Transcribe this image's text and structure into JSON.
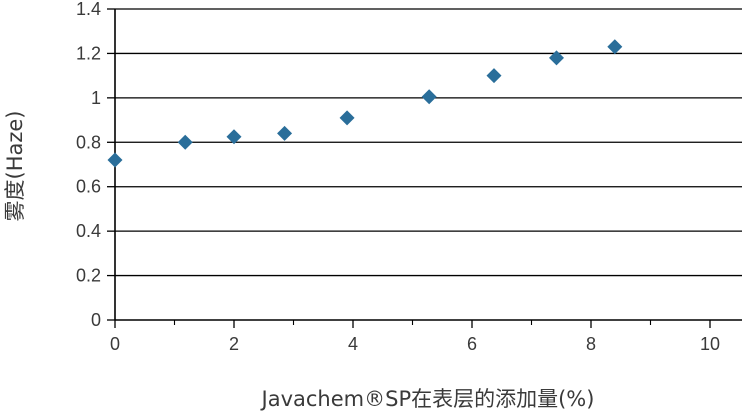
{
  "chart_data": {
    "type": "scatter",
    "title": "",
    "xlabel": "Javachem®SP在表层的添加量(%)",
    "ylabel": "雾度(Haze)",
    "xlim": [
      0,
      10
    ],
    "ylim": [
      0,
      1.4
    ],
    "x_ticks": [
      0,
      2,
      4,
      6,
      8,
      10
    ],
    "y_ticks": [
      0,
      0.2,
      0.4,
      0.6,
      0.8,
      1,
      1.2,
      1.4
    ],
    "x_tick_labels": [
      "0",
      "2",
      "4",
      "6",
      "8",
      "10"
    ],
    "y_tick_labels": [
      "0",
      "0.2",
      "0.4",
      "0.6",
      "0.8",
      "1",
      "1.2",
      "1.4"
    ],
    "grid": "horizontal",
    "marker": "diamond",
    "marker_color": "#2a6e9a",
    "grid_color": "#000000",
    "series": [
      {
        "x": [
          0,
          1.18,
          2.0,
          2.85,
          3.9,
          5.28,
          6.37,
          7.42,
          8.4
        ],
        "y": [
          0.72,
          0.8,
          0.825,
          0.84,
          0.91,
          1.005,
          1.1,
          1.18,
          1.23
        ]
      }
    ]
  }
}
